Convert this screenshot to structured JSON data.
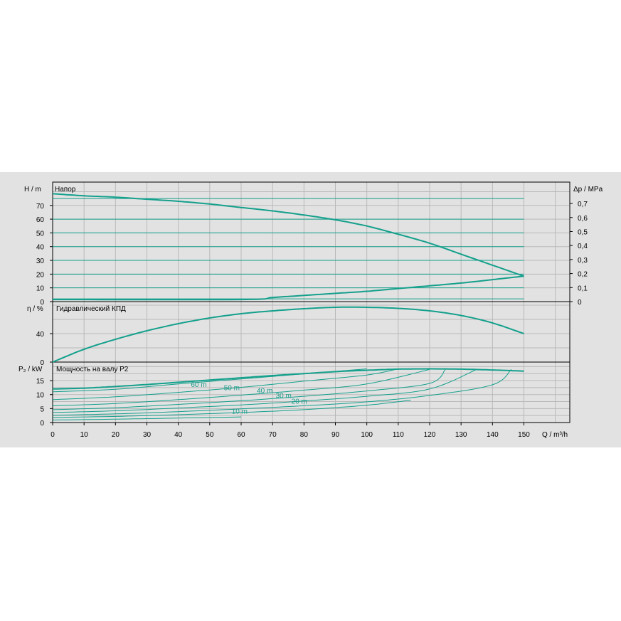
{
  "colors": {
    "background": "#e2e2e2",
    "curve": "#14a08c",
    "grid": "#b9b9b9",
    "frame": "#000000"
  },
  "chart_data": [
    {
      "type": "line",
      "title": "Напор",
      "ylabel": "H / m",
      "ylabel_right": "Δp / MPa",
      "ylim": [
        0,
        80
      ],
      "y_ticks": [
        "0",
        "10",
        "20",
        "30",
        "40",
        "50",
        "60",
        "70"
      ],
      "y_ticks_right": [
        "0",
        "0,1",
        "0,2",
        "0,3",
        "0,4",
        "0,5",
        "0,6",
        "0,7"
      ],
      "grid": true,
      "series": [
        {
          "x": [
            0,
            10,
            20,
            30,
            40,
            50,
            60,
            70,
            80,
            90,
            100,
            110,
            120,
            130,
            140,
            150
          ],
          "y": [
            78.5,
            77,
            76,
            74.5,
            73,
            71,
            68.5,
            66,
            63,
            59.5,
            55,
            49,
            42.5,
            34.5,
            26.5,
            18.5
          ]
        },
        {
          "x": [
            0,
            60,
            70,
            80,
            90,
            100,
            110,
            120,
            130,
            140,
            150
          ],
          "y": [
            1.5,
            1.5,
            3,
            4.5,
            6,
            7.5,
            9.5,
            11.5,
            13.5,
            16,
            18.5
          ]
        }
      ],
      "level_lines": [
        75,
        60,
        50,
        40,
        30,
        20,
        10,
        2
      ]
    },
    {
      "type": "line",
      "title": "Гидравлический КПД",
      "ylabel": "η / %",
      "ylim": [
        0,
        80
      ],
      "y_ticks": [
        "0",
        "40"
      ],
      "grid": true,
      "series": [
        {
          "x": [
            0,
            10,
            20,
            30,
            40,
            50,
            60,
            70,
            80,
            90,
            100,
            110,
            120,
            130,
            140,
            150
          ],
          "y": [
            0,
            18,
            32,
            44,
            54,
            62,
            68,
            72,
            75,
            77,
            77,
            75.5,
            72,
            65.5,
            55,
            40
          ]
        }
      ]
    },
    {
      "type": "line",
      "title": "Мощность на валу P2",
      "ylabel": "P₂ / kW",
      "ylim": [
        0,
        20
      ],
      "y_ticks": [
        "0",
        "5",
        "10",
        "15"
      ],
      "grid": true,
      "series": [
        {
          "x": [
            0,
            10,
            20,
            30,
            40,
            50,
            60,
            70,
            80,
            90,
            100,
            110,
            120,
            130,
            140,
            150
          ],
          "y": [
            12,
            12.3,
            12.9,
            13.6,
            14.4,
            15.2,
            16,
            16.8,
            17.5,
            18.2,
            18.7,
            19.1,
            19.2,
            19.1,
            18.8,
            18.4
          ]
        }
      ],
      "family_curves": [
        {
          "x": [
            0,
            20,
            40,
            60,
            80,
            100
          ],
          "y": [
            11,
            11.9,
            13.8,
            15.6,
            17.4,
            19.2
          ]
        },
        {
          "x": [
            0,
            20,
            40,
            60,
            80,
            100,
            110
          ],
          "y": [
            8.2,
            9.2,
            10.8,
            12.6,
            14.8,
            17,
            19.2
          ]
        },
        {
          "x": [
            0,
            20,
            40,
            60,
            80,
            100,
            120
          ],
          "y": [
            6,
            6.8,
            8.2,
            9.8,
            11.6,
            13.8,
            19
          ]
        },
        {
          "x": [
            0,
            20,
            40,
            60,
            80,
            100,
            120,
            125
          ],
          "y": [
            4.6,
            5.3,
            6.5,
            7.8,
            9.4,
            11.3,
            14,
            19
          ]
        },
        {
          "x": [
            0,
            20,
            40,
            60,
            80,
            100,
            120,
            135
          ],
          "y": [
            3.6,
            4.2,
            5.2,
            6.3,
            7.7,
            9.4,
            12,
            19
          ]
        },
        {
          "x": [
            0,
            20,
            40,
            60,
            80,
            100,
            120,
            140,
            146
          ],
          "y": [
            2.6,
            3.1,
            3.9,
            4.9,
            6,
            7.4,
            9.7,
            13.5,
            19
          ]
        },
        {
          "x": [
            0,
            20,
            40,
            60,
            80,
            100,
            114
          ],
          "y": [
            1.8,
            2.2,
            2.8,
            3.6,
            4.6,
            6.2,
            8
          ]
        },
        {
          "x": [
            0,
            20,
            40,
            60
          ],
          "y": [
            0.9,
            1.2,
            1.6,
            2
          ]
        }
      ],
      "curve_labels": [
        {
          "text": "60 m",
          "x": 44,
          "y": 13.5
        },
        {
          "text": "50 m",
          "x": 54.5,
          "y": 12.3
        },
        {
          "text": "40 m",
          "x": 65,
          "y": 11.3
        },
        {
          "text": "30 m",
          "x": 71,
          "y": 9.5
        },
        {
          "text": "20 m",
          "x": 76,
          "y": 7.5
        },
        {
          "text": "10 m",
          "x": 57,
          "y": 4
        }
      ]
    }
  ],
  "x_axis": {
    "label": "Q / m³/h",
    "range": [
      0,
      150
    ],
    "ticks": [
      "0",
      "10",
      "20",
      "30",
      "40",
      "50",
      "60",
      "70",
      "80",
      "90",
      "100",
      "110",
      "120",
      "130",
      "140",
      "150"
    ]
  }
}
